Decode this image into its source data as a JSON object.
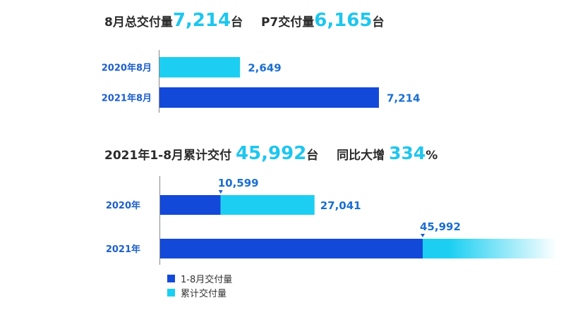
{
  "headline1": {
    "prefix": "8月总交付量",
    "value": "7,214",
    "unit": "台",
    "p7_prefix": "P7交付量",
    "p7_value": "6,165",
    "p7_unit": "台"
  },
  "headline2": {
    "prefix": "2021年1-8月累计交付",
    "value": "45,992",
    "unit": "台",
    "mid": "同比大增",
    "pct": "334",
    "pct_sign": "%"
  },
  "colors": {
    "dark_blue": "#1249d9",
    "cyan": "#1ccff2",
    "label_blue": "#1d5fcc",
    "value_blue": "#1b6fd0",
    "axis": "#888888"
  },
  "chart_data": [
    {
      "type": "bar",
      "orientation": "horizontal",
      "categories": [
        "2020年8月",
        "2021年8月"
      ],
      "values": [
        2649,
        7214
      ],
      "value_labels": [
        "2,649",
        "7,214"
      ],
      "bar_colors": [
        "#1ccff2",
        "#1249d9"
      ],
      "xlim": [
        0,
        7214
      ]
    },
    {
      "type": "bar",
      "orientation": "horizontal",
      "stacked": true,
      "categories": [
        "2020年",
        "2021年"
      ],
      "series": [
        {
          "name": "1-8月交付量",
          "values": [
            10599,
            45992
          ],
          "color": "#1249d9"
        },
        {
          "name": "累计交付量",
          "values": [
            27041,
            null
          ],
          "color": "#1ccff2"
        }
      ],
      "annotations": [
        {
          "category": "2020年",
          "at": 10599,
          "text": "10,599",
          "position": "above-marker"
        },
        {
          "category": "2020年",
          "at": 27041,
          "text": "27,041",
          "position": "end"
        },
        {
          "category": "2021年",
          "at": 45992,
          "text": "45,992",
          "position": "above-marker"
        }
      ],
      "xlim": [
        0,
        45992
      ],
      "legend": {
        "position": "bottom-left",
        "entries": [
          {
            "label": "1-8月交付量",
            "color": "#1249d9"
          },
          {
            "label": "累计交付量",
            "color": "#1ccff2"
          }
        ]
      }
    }
  ]
}
